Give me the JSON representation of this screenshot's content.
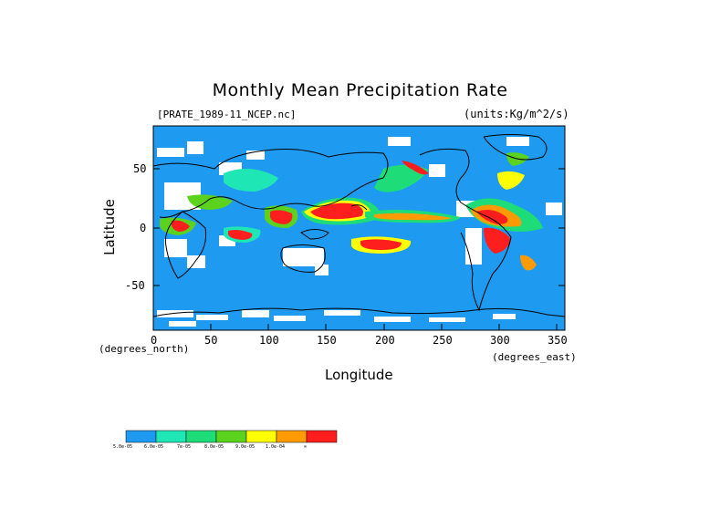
{
  "title": "Monthly Mean Precipitation Rate",
  "file_label": "[PRATE_1989-11_NCEP.nc]",
  "units_label": "(units:Kg/m^2/s)",
  "axes": {
    "xlabel": "Longitude",
    "ylabel": "Latitude",
    "x_unit": "(degrees_east)",
    "y_unit": "(degrees_north)",
    "x_ticks": [
      "0",
      "50",
      "100",
      "150",
      "200",
      "250",
      "300",
      "350"
    ],
    "y_ticks": [
      "50",
      "0",
      "-50"
    ],
    "xlim": [
      0,
      357.5
    ],
    "ylim": [
      -90,
      90
    ]
  },
  "legend": {
    "colors": [
      "#1e9bf0",
      "#1ee6b4",
      "#1edc78",
      "#5ad21e",
      "#ffff00",
      "#ff9b00",
      "#ff1e1e"
    ],
    "labels": [
      "5.0e-05",
      "6.0e-05",
      "7e-05",
      "8.0e-05",
      "9.0e-05",
      "1.0e-04",
      "∞"
    ]
  },
  "colors": {
    "ocean": "#1e9bf0",
    "land_gap": "#ffffff",
    "coast": "#000000"
  }
}
